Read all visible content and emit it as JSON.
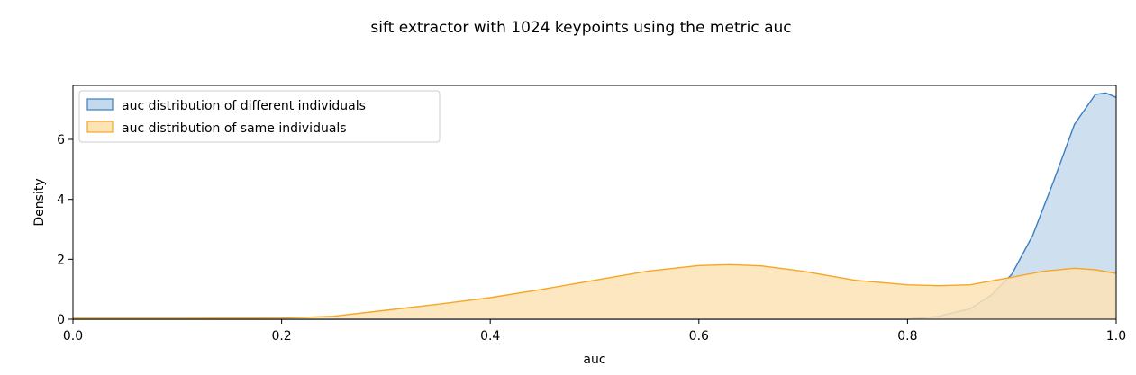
{
  "chart_data": {
    "type": "area",
    "title": "sift extractor with 1024 keypoints using the metric auc",
    "xlabel": "auc",
    "ylabel": "Density",
    "xlim": [
      0.0,
      1.0
    ],
    "ylim": [
      0,
      7.8
    ],
    "xticks": [
      0.0,
      0.2,
      0.4,
      0.6,
      0.8,
      1.0
    ],
    "xtick_labels": [
      "0.0",
      "0.2",
      "0.4",
      "0.6",
      "0.8",
      "1.0"
    ],
    "yticks": [
      0,
      2,
      4,
      6
    ],
    "ytick_labels": [
      "0",
      "2",
      "4",
      "6"
    ],
    "grid": false,
    "legend_position": "top-left",
    "series": [
      {
        "name": "auc distribution of different individuals",
        "line_color": "#3a7ebf",
        "fill_color": "#c5d9ed",
        "x": [
          0.0,
          0.8,
          0.83,
          0.86,
          0.88,
          0.9,
          0.92,
          0.94,
          0.96,
          0.98,
          0.99,
          1.0
        ],
        "y": [
          0.0,
          0.0,
          0.1,
          0.35,
          0.8,
          1.5,
          2.8,
          4.6,
          6.5,
          7.5,
          7.55,
          7.4
        ]
      },
      {
        "name": "auc distribution of same individuals",
        "line_color": "#f5a623",
        "fill_color": "#fde3b5",
        "x": [
          0.0,
          0.1,
          0.2,
          0.25,
          0.3,
          0.35,
          0.4,
          0.45,
          0.5,
          0.55,
          0.6,
          0.63,
          0.66,
          0.7,
          0.75,
          0.8,
          0.83,
          0.86,
          0.9,
          0.93,
          0.96,
          0.98,
          1.0
        ],
        "y": [
          0.03,
          0.03,
          0.04,
          0.1,
          0.3,
          0.5,
          0.72,
          1.0,
          1.3,
          1.6,
          1.79,
          1.82,
          1.78,
          1.6,
          1.3,
          1.15,
          1.12,
          1.15,
          1.4,
          1.6,
          1.7,
          1.65,
          1.53
        ]
      }
    ]
  }
}
